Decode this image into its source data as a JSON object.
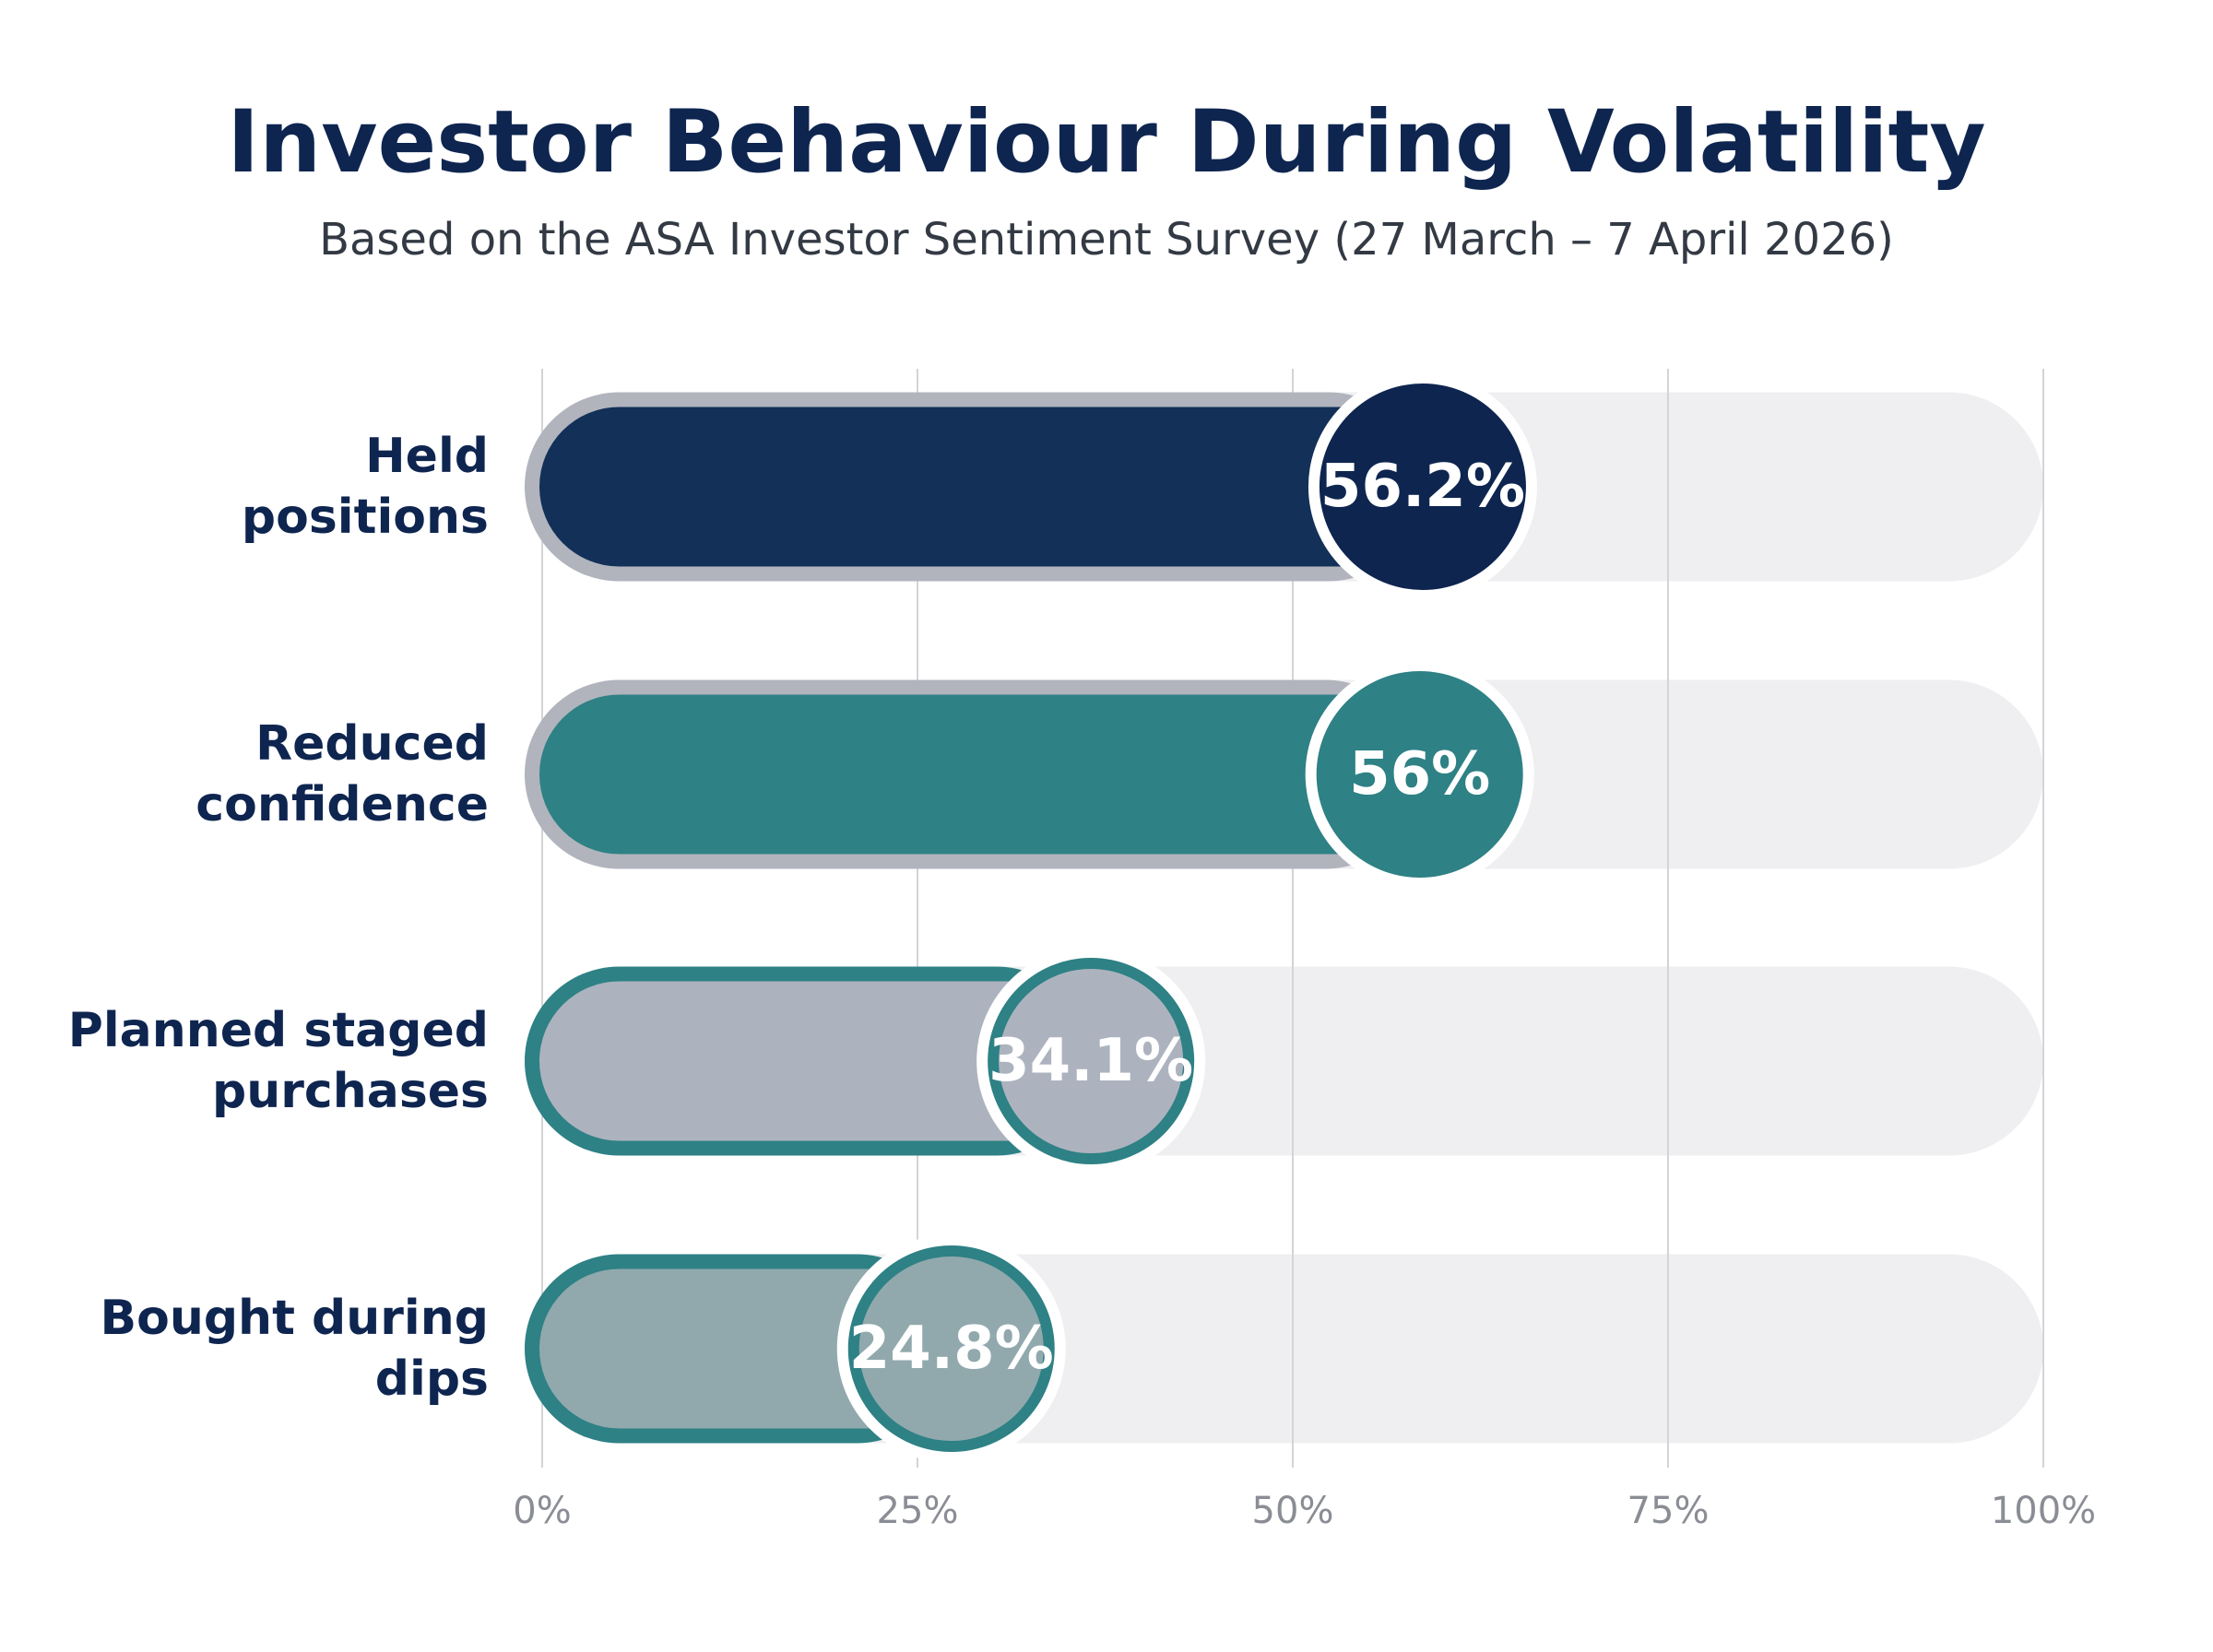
{
  "chart_data": {
    "type": "bar",
    "orientation": "horizontal",
    "title": "Investor Behaviour During Volatility",
    "subtitle": "Based on the ASA Investor Sentiment Survey (27 March – 7 April 2026)",
    "categories": [
      "Held\npositions",
      "Reduced\nconfidence",
      "Planned staged\npurchases",
      "Bought during\ndips"
    ],
    "values": [
      56.2,
      56,
      34.1,
      24.8
    ],
    "value_labels": [
      "56.2%",
      "56%",
      "34.1%",
      "24.8%"
    ],
    "colors": [
      "#123058",
      "#2e8185",
      "#adb3be",
      "#91a9ad"
    ],
    "border_colors": [
      "#b1b4bd",
      "#b1b4bd",
      "#2e8185",
      "#2e8185"
    ],
    "ring_colors": [
      "#0e2550",
      "#2e8185",
      "#2e8185",
      "#2e8185"
    ],
    "xlim": [
      0,
      100
    ],
    "xticks": [
      {
        "value": 0,
        "label": "0%"
      },
      {
        "value": 25,
        "label": "25%"
      },
      {
        "value": 50,
        "label": "50%"
      },
      {
        "value": 75,
        "label": "75%"
      },
      {
        "value": 100,
        "label": "100%"
      }
    ],
    "grid": true
  }
}
